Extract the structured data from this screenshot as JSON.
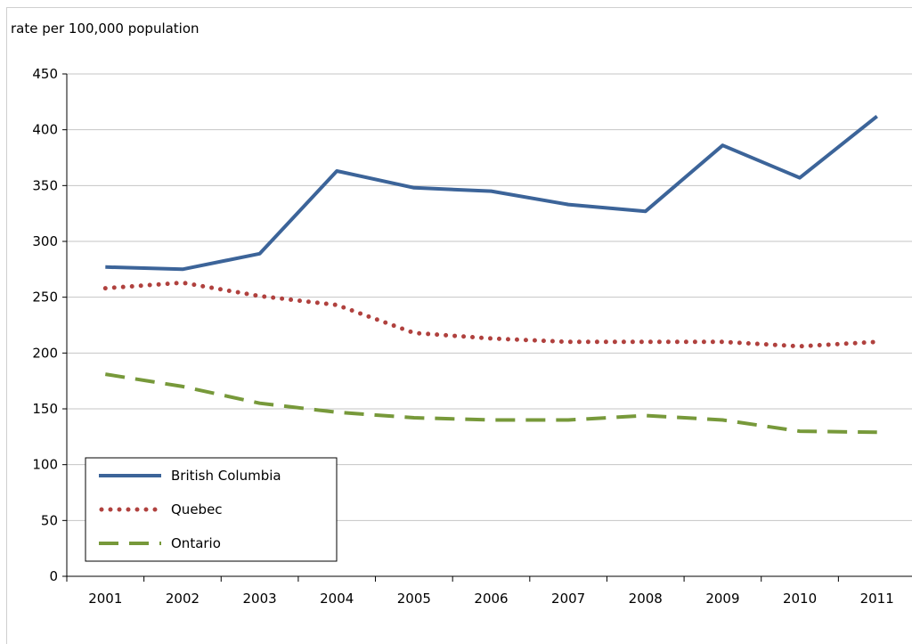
{
  "chart_data": {
    "type": "line",
    "ylabel": "rate per 100,000 population",
    "xlabel": "",
    "categories": [
      "2001",
      "2002",
      "2003",
      "2004",
      "2005",
      "2006",
      "2007",
      "2008",
      "2009",
      "2010",
      "2011"
    ],
    "ylim": [
      0,
      450
    ],
    "yticks": [
      0,
      50,
      100,
      150,
      200,
      250,
      300,
      350,
      400,
      450
    ],
    "grid": "horizontal",
    "legend_position": "bottom-left",
    "series": [
      {
        "name": "British Columbia",
        "values": [
          277,
          275,
          289,
          363,
          348,
          345,
          333,
          327,
          386,
          357,
          412
        ],
        "color": "#3c6499",
        "style": "solid"
      },
      {
        "name": "Quebec",
        "values": [
          258,
          263,
          251,
          243,
          218,
          213,
          210,
          210,
          210,
          206,
          210
        ],
        "color": "#b0413e",
        "style": "dotted"
      },
      {
        "name": "Ontario",
        "values": [
          181,
          170,
          155,
          147,
          142,
          140,
          140,
          144,
          140,
          130,
          129
        ],
        "color": "#77993a",
        "style": "dashed"
      }
    ]
  }
}
